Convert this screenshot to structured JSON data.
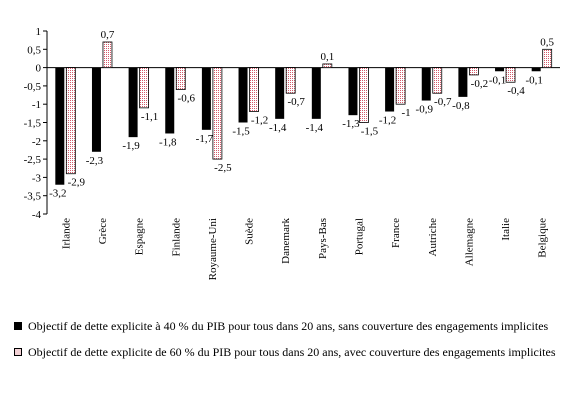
{
  "chart_data": {
    "type": "bar",
    "categories": [
      "Irlande",
      "Grèce",
      "Espagne",
      "Finlande",
      "Royaume-Uni",
      "Suède",
      "Danemark",
      "Pays-Bas",
      "Portugal",
      "France",
      "Autriche",
      "Allemagne",
      "Italie",
      "Belgique"
    ],
    "series": [
      {
        "name": "Objectif de dette explicite à 40 % du PIB pour tous dans 20 ans, sans couverture des engagements implicites",
        "values": [
          -3.2,
          -2.3,
          -1.9,
          -1.8,
          -1.7,
          -1.5,
          -1.4,
          -1.4,
          -1.3,
          -1.2,
          -0.9,
          -0.8,
          -0.1,
          -0.1
        ],
        "labels": [
          "-3,2",
          "-2,3",
          "-1,9",
          "-1,8",
          "-1,7",
          "-1,5",
          "-1,4",
          "-1,4",
          "-1,3",
          "-1,2",
          "-0,9",
          "-0,8",
          "-0,1",
          "-0,1"
        ],
        "style": "solid",
        "color": "#000000"
      },
      {
        "name": "Objectif de dette explicite de 60 % du PIB pour tous dans 20 ans, avec couverture des engagements implicites",
        "values": [
          -2.9,
          0.7,
          -1.1,
          -0.6,
          -2.5,
          -1.2,
          -0.7,
          0.1,
          -1.5,
          -1.0,
          -0.7,
          -0.2,
          -0.4,
          0.5
        ],
        "labels": [
          "-2,9",
          "0,7",
          "-1,1",
          "-0,6",
          "-2,5",
          "-1,2",
          "-0,7",
          "0,1",
          "-1,5",
          "-1",
          "-0,7",
          "-0,2",
          "-0,4",
          "0,5"
        ],
        "style": "dotted",
        "color": "#d45a6a"
      }
    ],
    "ylim": [
      -4,
      1
    ],
    "yticks": [
      1,
      0.5,
      0,
      -0.5,
      -1,
      -1.5,
      -2,
      -2.5,
      -3,
      -3.5,
      -4
    ],
    "ytick_labels": [
      "1",
      "0,5",
      "0",
      "-0,5",
      "-1",
      "-1,5",
      "-2",
      "-2,5",
      "-3",
      "-3,5",
      "-4"
    ],
    "grid": false,
    "legend_position": "bottom",
    "title": "",
    "xlabel": "",
    "ylabel": ""
  }
}
